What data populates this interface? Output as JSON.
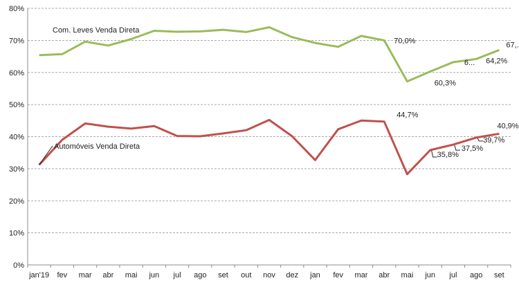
{
  "chart_data": {
    "type": "line",
    "categories": [
      "jan'19",
      "fev",
      "mar",
      "abr",
      "mai",
      "jun",
      "jul",
      "ago",
      "set",
      "out",
      "nov",
      "dez",
      "jan",
      "fev",
      "mar",
      "abr",
      "mai",
      "jun",
      "jul",
      "ago",
      "set"
    ],
    "y_ticks": [
      "0%",
      "10%",
      "20%",
      "30%",
      "40%",
      "50%",
      "60%",
      "70%",
      "80%"
    ],
    "ylim": [
      0,
      80
    ],
    "grid": true,
    "series": [
      {
        "name": "Com. Leves Venda Direta",
        "color": "#9BBB59",
        "values": [
          65.4,
          65.7,
          69.6,
          68.4,
          70.4,
          73.0,
          72.7,
          72.8,
          73.3,
          72.6,
          74.1,
          71.0,
          69.2,
          68.0,
          71.4,
          70.0,
          57.2,
          60.3,
          63.2,
          64.2,
          67.0
        ],
        "data_labels": [
          {
            "index": 15,
            "text": "70,0%"
          },
          {
            "index": 17,
            "text": "60,3%"
          },
          {
            "index": 18,
            "text": "6..."
          },
          {
            "index": 19,
            "text": "64,2%"
          },
          {
            "index": 20,
            "text": "67,..."
          }
        ]
      },
      {
        "name": "Automóveis Venda Direta",
        "color": "#C0504D",
        "values": [
          31.2,
          39.0,
          44.1,
          43.1,
          42.5,
          43.3,
          40.2,
          40.1,
          41.0,
          42.0,
          45.2,
          40.1,
          32.7,
          42.3,
          45.0,
          44.7,
          28.3,
          35.8,
          37.5,
          39.7,
          40.9
        ],
        "data_labels": [
          {
            "index": 15,
            "text": "44,7%"
          },
          {
            "index": 17,
            "text": "35,8%"
          },
          {
            "index": 18,
            "text": "37,5%"
          },
          {
            "index": 19,
            "text": "39,7%"
          },
          {
            "index": 20,
            "text": "40,9%"
          }
        ]
      }
    ]
  }
}
